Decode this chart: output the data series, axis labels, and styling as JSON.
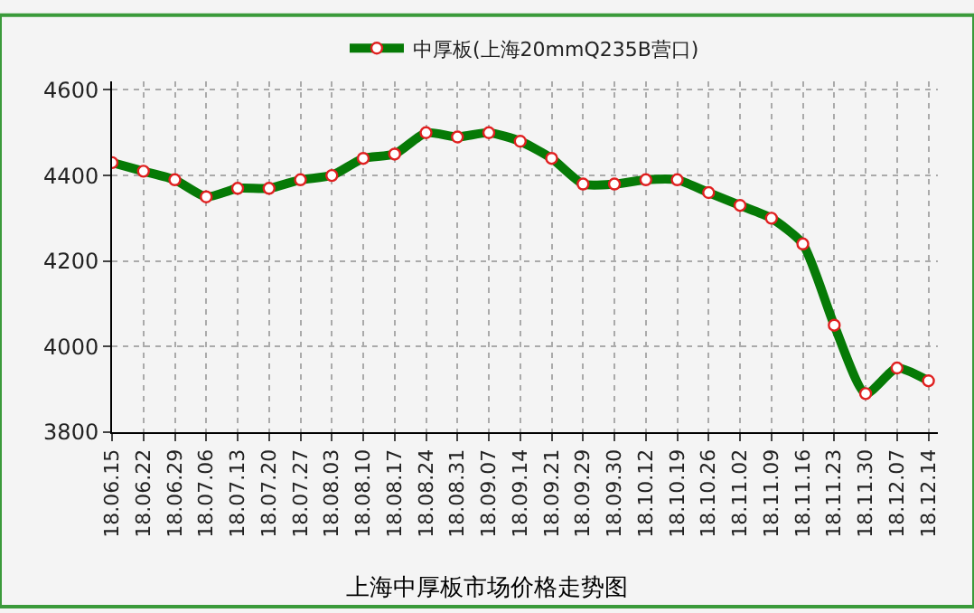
{
  "chart_data": {
    "type": "line",
    "title": "上海中厚板市场价格走势图",
    "categories": [
      "18.06.15",
      "18.06.22",
      "18.06.29",
      "18.07.06",
      "18.07.13",
      "18.07.20",
      "18.07.27",
      "18.08.03",
      "18.08.10",
      "18.08.17",
      "18.08.24",
      "18.08.31",
      "18.09.07",
      "18.09.14",
      "18.09.21",
      "18.09.29",
      "18.09.30",
      "18.10.12",
      "18.10.19",
      "18.10.26",
      "18.11.02",
      "18.11.09",
      "18.11.16",
      "18.11.23",
      "18.11.30",
      "18.12.07",
      "18.12.14"
    ],
    "series": [
      {
        "name": "中厚板(上海20mmQ235B营口)",
        "color": "#067a06",
        "values": [
          4430,
          4410,
          4390,
          4350,
          4370,
          4370,
          4390,
          4400,
          4440,
          4450,
          4500,
          4490,
          4500,
          4480,
          4440,
          4380,
          4380,
          4390,
          4390,
          4360,
          4330,
          4300,
          4240,
          4050,
          3890,
          3950,
          3920
        ]
      }
    ],
    "ylim": [
      3800,
      4620
    ],
    "yticks": [
      3800,
      4000,
      4200,
      4400,
      4600
    ],
    "grid": true,
    "legend": "top",
    "marker": "circle",
    "line_style": "solid"
  }
}
